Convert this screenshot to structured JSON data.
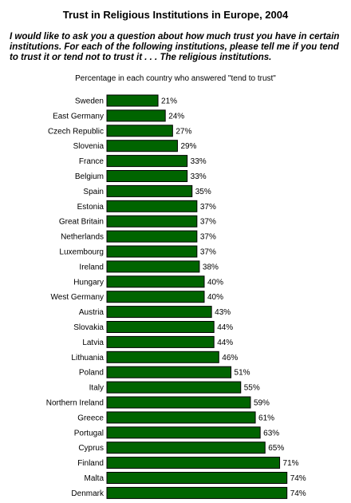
{
  "title": "Trust in Religious Institutions in Europe, 2004",
  "question": "I would like to ask you a question about how much trust you have in certain institutions. For each of the following institutions, please tell me if you tend to trust it or tend not to trust it . . . The religious institutions.",
  "subtitle": "Percentage in each country who answered \"tend to trust\"",
  "colors": {
    "bar": "#006400",
    "bar_stroke": "#000000"
  },
  "chart_data": {
    "type": "bar",
    "orientation": "horizontal",
    "title": "Trust in Religious Institutions in Europe, 2004",
    "subtitle": "Percentage in each country who answered \"tend to trust\"",
    "categories": [
      "Sweden",
      "East Germany",
      "Czech Republic",
      "Slovenia",
      "France",
      "Belgium",
      "Spain",
      "Estonia",
      "Great Britain",
      "Netherlands",
      "Luxembourg",
      "Ireland",
      "Hungary",
      "West Germany",
      "Austria",
      "Slovakia",
      "Latvia",
      "Lithuania",
      "Poland",
      "Italy",
      "Northern Ireland",
      "Greece",
      "Portugal",
      "Cyprus",
      "Finland",
      "Malta",
      "Denmark"
    ],
    "values": [
      21,
      24,
      27,
      29,
      33,
      33,
      35,
      37,
      37,
      37,
      37,
      38,
      40,
      40,
      43,
      44,
      44,
      46,
      51,
      55,
      59,
      61,
      63,
      65,
      71,
      74,
      74
    ],
    "value_suffix": "%",
    "xlim": [
      0,
      100
    ],
    "grid": false,
    "legend": "none"
  }
}
